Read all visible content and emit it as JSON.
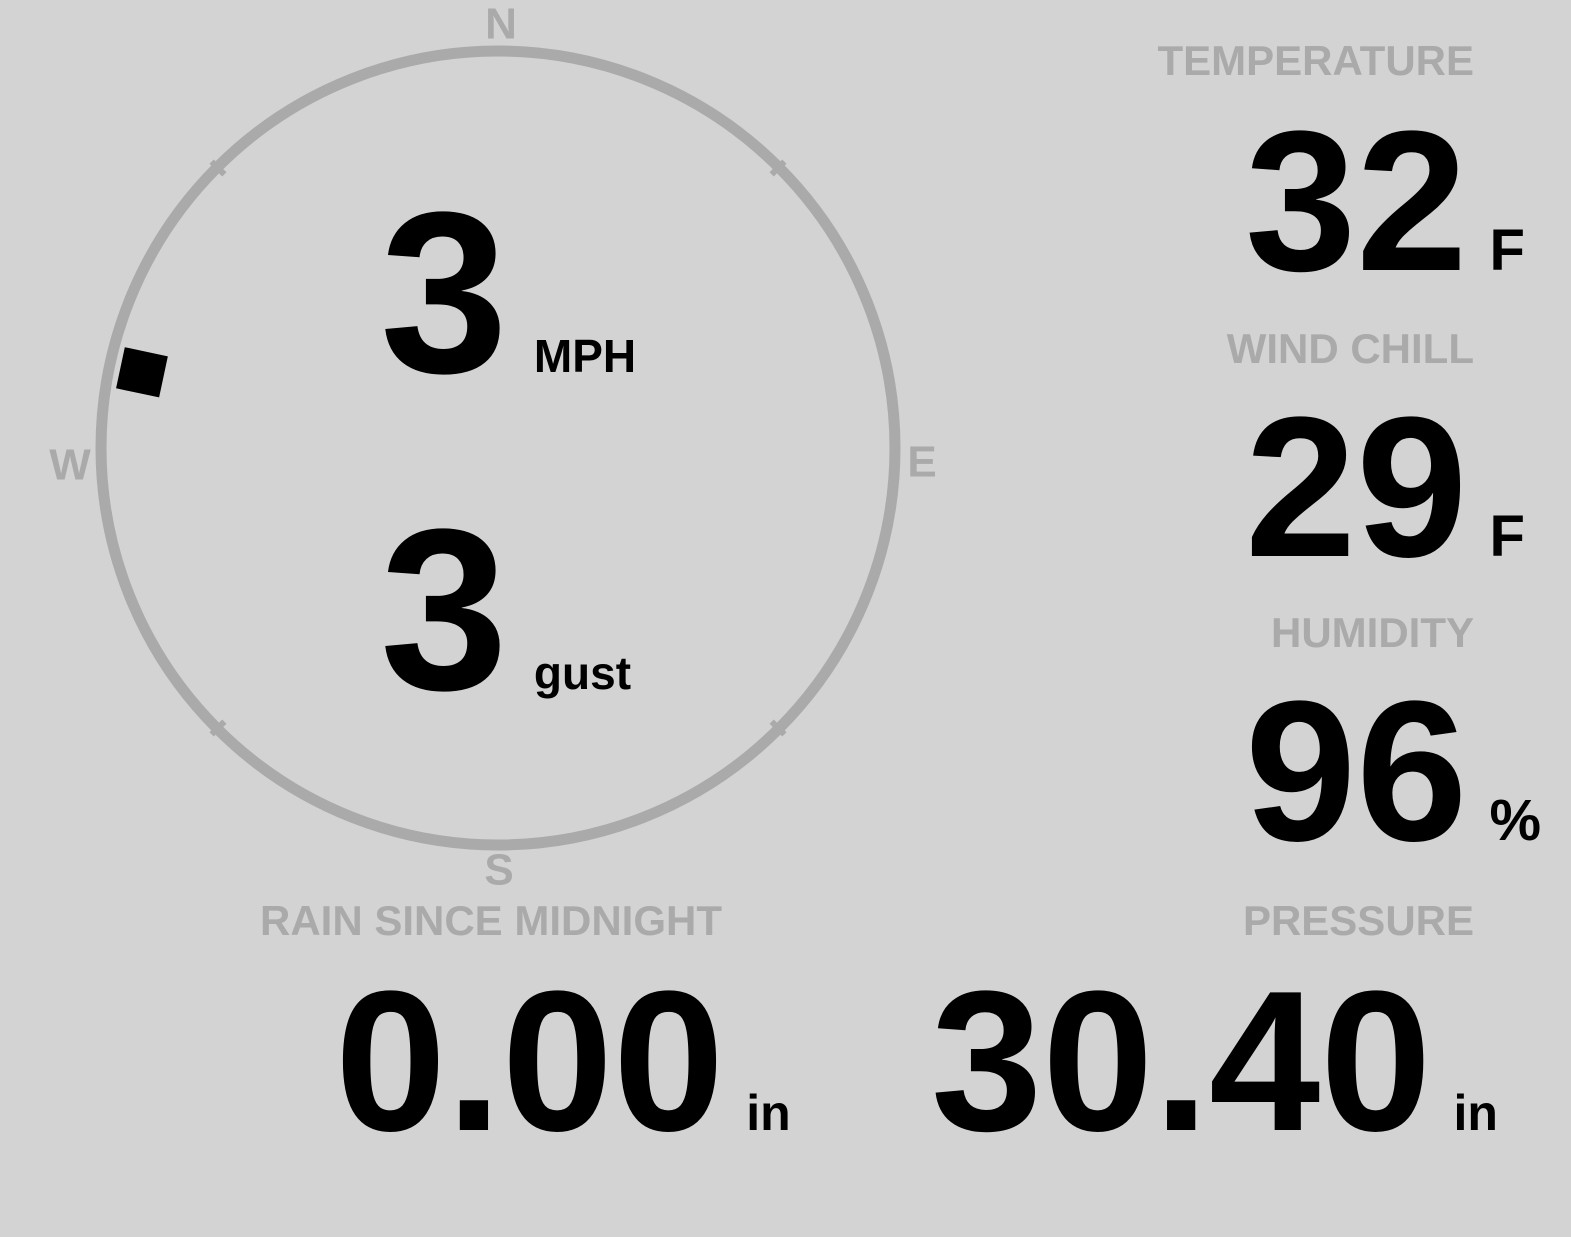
{
  "colors": {
    "background": "#d3d3d3",
    "label": "#aaaaaa",
    "value": "#000000",
    "dial": "#aaaaaa",
    "direction_marker": "#000000"
  },
  "compass": {
    "north": "N",
    "east": "E",
    "south": "S",
    "west": "W",
    "wind_direction_deg": 282,
    "speed": {
      "value": "3",
      "unit": "MPH"
    },
    "gust": {
      "value": "3",
      "unit": "gust"
    }
  },
  "temperature": {
    "label": "TEMPERATURE",
    "value": "32",
    "unit": "F"
  },
  "wind_chill": {
    "label": "WIND CHILL",
    "value": "29",
    "unit": "F"
  },
  "humidity": {
    "label": "HUMIDITY",
    "value": "96",
    "unit": "%"
  },
  "rain": {
    "label": "RAIN SINCE MIDNIGHT",
    "value": "0.00",
    "unit": "in"
  },
  "pressure": {
    "label": "PRESSURE",
    "value": "30.40",
    "unit": "in"
  }
}
